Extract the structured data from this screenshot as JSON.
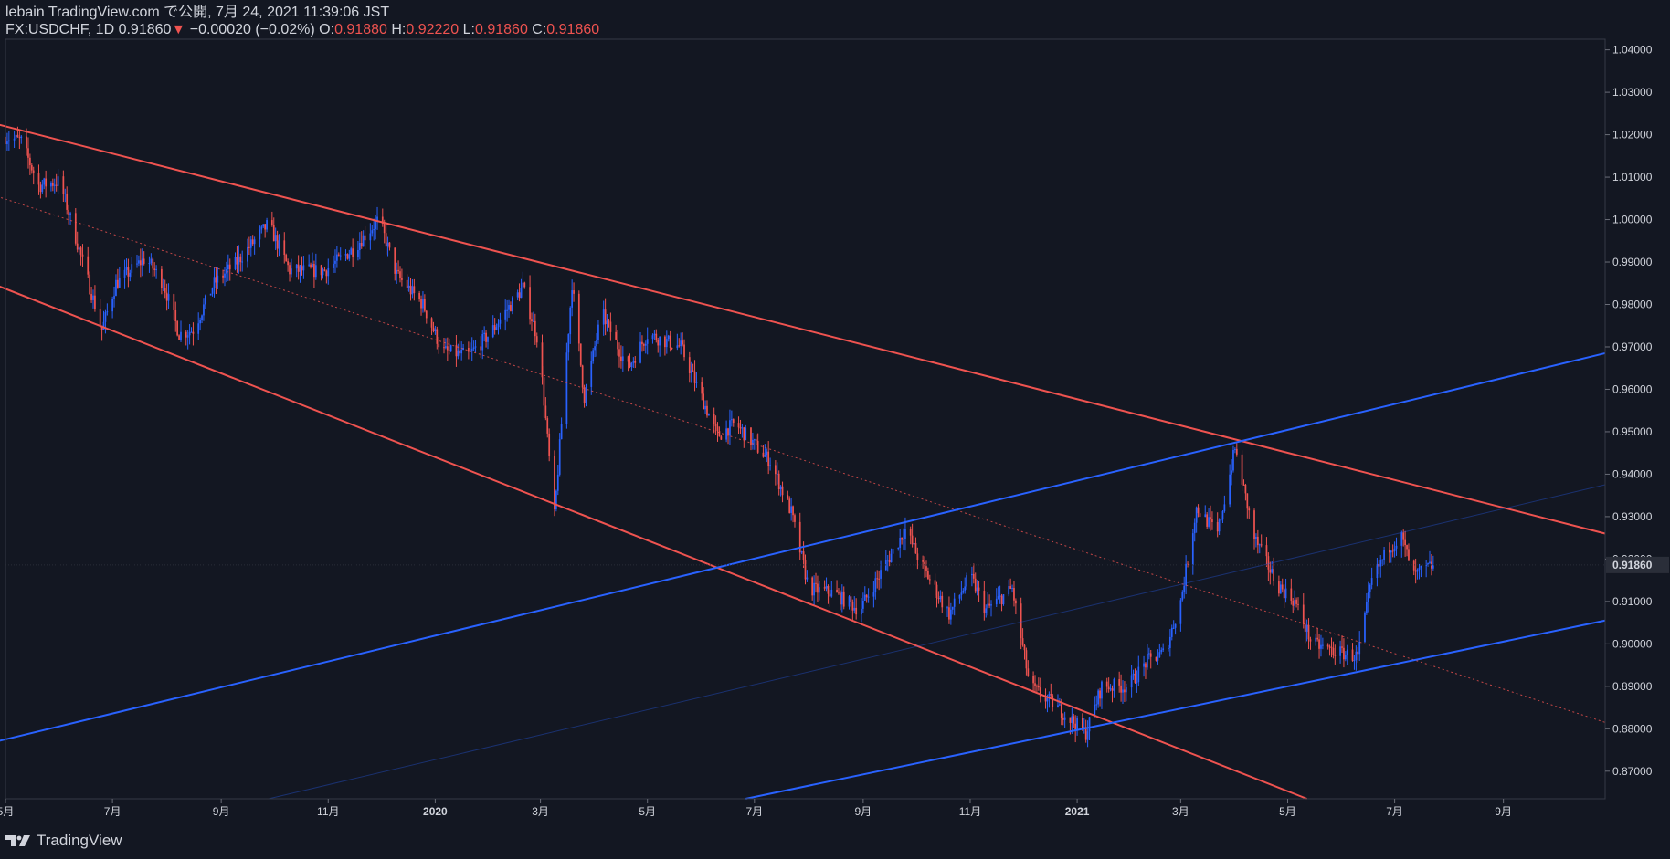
{
  "header": {
    "publisher_line": "lebain TradingView.com で公開, 7月 24, 2021 11:39:06 JST",
    "symbol": "FX:USDCHF, 1D",
    "last": "0.91860",
    "change_arrow": "▼",
    "change": "−0.00020 (−0.02%)",
    "o_label": "O:",
    "o_value": "0.91880",
    "h_label": "H:",
    "h_value": "0.92220",
    "l_label": "L:",
    "l_value": "0.91860",
    "c_label": "C:",
    "c_value": "0.91860"
  },
  "footer": {
    "brand": "TradingView",
    "logo_icon": "tradingview-logo-icon"
  },
  "colors": {
    "background": "#131722",
    "up": "#2962ff",
    "down": "#ef5350",
    "price_tag_bg": "#2a2e39"
  },
  "chart_data": {
    "type": "candlestick",
    "instrument": "FX:USDCHF",
    "timeframe": "1D",
    "xlim": [
      "2019-05-01",
      "2021-10-29"
    ],
    "ylim": [
      0.8635,
      1.0425
    ],
    "y_ticks": [
      "0.87000",
      "0.88000",
      "0.89000",
      "0.90000",
      "0.91000",
      "0.92000",
      "0.93000",
      "0.94000",
      "0.95000",
      "0.96000",
      "0.97000",
      "0.98000",
      "0.99000",
      "1.00000",
      "1.01000",
      "1.02000",
      "1.03000",
      "1.04000"
    ],
    "x_ticks": [
      {
        "date": "2019-05-01",
        "label": "5月",
        "bold": false
      },
      {
        "date": "2019-07-01",
        "label": "7月",
        "bold": false
      },
      {
        "date": "2019-09-01",
        "label": "9月",
        "bold": false
      },
      {
        "date": "2019-11-01",
        "label": "11月",
        "bold": false
      },
      {
        "date": "2020-01-01",
        "label": "2020",
        "bold": true
      },
      {
        "date": "2020-03-01",
        "label": "3月",
        "bold": false
      },
      {
        "date": "2020-05-01",
        "label": "5月",
        "bold": false
      },
      {
        "date": "2020-07-01",
        "label": "7月",
        "bold": false
      },
      {
        "date": "2020-09-01",
        "label": "9月",
        "bold": false
      },
      {
        "date": "2020-11-01",
        "label": "11月",
        "bold": false
      },
      {
        "date": "2021-01-01",
        "label": "2021",
        "bold": true
      },
      {
        "date": "2021-03-01",
        "label": "3月",
        "bold": false
      },
      {
        "date": "2021-05-01",
        "label": "5月",
        "bold": false
      },
      {
        "date": "2021-07-01",
        "label": "7月",
        "bold": false
      },
      {
        "date": "2021-09-01",
        "label": "9月",
        "bold": false
      }
    ],
    "last_price": "0.91860",
    "anchors": [
      [
        "2019-05-01",
        1.0195
      ],
      [
        "2019-05-10",
        1.0185
      ],
      [
        "2019-05-20",
        1.008
      ],
      [
        "2019-06-01",
        1.009
      ],
      [
        "2019-06-14",
        0.99
      ],
      [
        "2019-06-25",
        0.974
      ],
      [
        "2019-07-03",
        0.985
      ],
      [
        "2019-07-20",
        0.991
      ],
      [
        "2019-07-30",
        0.985
      ],
      [
        "2019-08-08",
        0.973
      ],
      [
        "2019-08-16",
        0.974
      ],
      [
        "2019-08-28",
        0.985
      ],
      [
        "2019-09-10",
        0.99
      ],
      [
        "2019-09-28",
        0.999
      ],
      [
        "2019-10-10",
        0.988
      ],
      [
        "2019-10-30",
        0.988
      ],
      [
        "2019-11-15",
        0.993
      ],
      [
        "2019-11-30",
        1.0
      ],
      [
        "2019-12-10",
        0.987
      ],
      [
        "2019-12-25",
        0.98
      ],
      [
        "2020-01-05",
        0.969
      ],
      [
        "2020-01-20",
        0.968
      ],
      [
        "2020-02-01",
        0.973
      ],
      [
        "2020-02-20",
        0.984
      ],
      [
        "2020-02-29",
        0.971
      ],
      [
        "2020-03-09",
        0.93
      ],
      [
        "2020-03-19",
        0.985
      ],
      [
        "2020-03-26",
        0.958
      ],
      [
        "2020-04-05",
        0.978
      ],
      [
        "2020-04-20",
        0.965
      ],
      [
        "2020-05-01",
        0.973
      ],
      [
        "2020-05-20",
        0.97
      ],
      [
        "2020-06-01",
        0.958
      ],
      [
        "2020-06-10",
        0.949
      ],
      [
        "2020-06-20",
        0.952
      ],
      [
        "2020-07-01",
        0.947
      ],
      [
        "2020-07-10",
        0.943
      ],
      [
        "2020-07-22",
        0.931
      ],
      [
        "2020-08-01",
        0.913
      ],
      [
        "2020-08-15",
        0.912
      ],
      [
        "2020-08-30",
        0.908
      ],
      [
        "2020-09-10",
        0.916
      ],
      [
        "2020-09-25",
        0.927
      ],
      [
        "2020-10-05",
        0.918
      ],
      [
        "2020-10-20",
        0.907
      ],
      [
        "2020-11-01",
        0.916
      ],
      [
        "2020-11-10",
        0.908
      ],
      [
        "2020-11-25",
        0.913
      ],
      [
        "2020-12-05",
        0.89
      ],
      [
        "2020-12-18",
        0.886
      ],
      [
        "2021-01-06",
        0.879
      ],
      [
        "2021-01-15",
        0.89
      ],
      [
        "2021-01-30",
        0.89
      ],
      [
        "2021-02-10",
        0.896
      ],
      [
        "2021-02-20",
        0.898
      ],
      [
        "2021-03-01",
        0.91
      ],
      [
        "2021-03-10",
        0.932
      ],
      [
        "2021-03-22",
        0.926
      ],
      [
        "2021-04-01",
        0.946
      ],
      [
        "2021-04-12",
        0.925
      ],
      [
        "2021-04-25",
        0.914
      ],
      [
        "2021-05-05",
        0.91
      ],
      [
        "2021-05-15",
        0.9
      ],
      [
        "2021-05-30",
        0.898
      ],
      [
        "2021-06-10",
        0.897
      ],
      [
        "2021-06-18",
        0.915
      ],
      [
        "2021-06-28",
        0.923
      ],
      [
        "2021-07-05",
        0.925
      ],
      [
        "2021-07-12",
        0.916
      ],
      [
        "2021-07-23",
        0.9186
      ]
    ],
    "trendlines": [
      {
        "name": "upper-resistance",
        "color": "#ef5350",
        "width": 2,
        "style": "solid",
        "p1": [
          "2019-04-26",
          1.0225
        ],
        "p2": [
          "2021-10-29",
          0.926
        ]
      },
      {
        "name": "lower-support",
        "color": "#ef5350",
        "width": 2,
        "style": "solid",
        "p1": [
          "2019-04-26",
          0.9845
        ],
        "p2": [
          "2021-05-12",
          0.8635
        ]
      },
      {
        "name": "mid-channel",
        "color": "#ef5350",
        "width": 1,
        "style": "dotted",
        "p1": [
          "2019-04-26",
          1.0055
        ],
        "p2": [
          "2021-10-29",
          0.8815
        ]
      },
      {
        "name": "rising-upper",
        "color": "#2962ff",
        "width": 2,
        "style": "solid",
        "p1": [
          "2019-04-26",
          0.877
        ],
        "p2": [
          "2021-10-29",
          0.9685
        ]
      },
      {
        "name": "rising-lower",
        "color": "#2962ff",
        "width": 2,
        "style": "solid",
        "p1": [
          "2020-06-26",
          0.8635
        ],
        "p2": [
          "2021-10-29",
          0.9055
        ]
      },
      {
        "name": "rising-mid",
        "color": "#2962ff",
        "width": 1,
        "style": "faint",
        "p1": [
          "2019-09-28",
          0.8635
        ],
        "p2": [
          "2021-10-29",
          0.9375
        ]
      }
    ]
  }
}
